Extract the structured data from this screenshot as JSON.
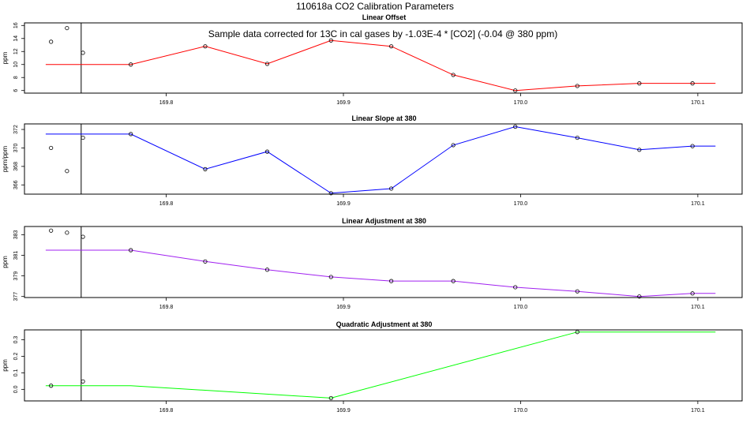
{
  "page_title": "110618a   CO2 Calibration Parameters",
  "annotation": "Sample data corrected for 13C in cal gases by -1.03E-4 * [CO2] (-0.04 @ 380 ppm)",
  "chart_data": [
    {
      "type": "line",
      "title": "Linear Offset",
      "ylabel": "ppm",
      "line_color": "#ff0000",
      "xlim": [
        169.72,
        170.125
      ],
      "ylim": [
        5.6,
        16.4
      ],
      "xticks": [
        169.8,
        169.9,
        170.0,
        170.1
      ],
      "xtick_labels": [
        "169.8",
        "169.9",
        "170.0",
        "170.1"
      ],
      "yticks": [
        6,
        8,
        10,
        12,
        14,
        16
      ],
      "ytick_labels": [
        "6",
        "8",
        "10",
        "12",
        "14",
        "16"
      ],
      "vline_x": 169.752,
      "line": {
        "x": [
          169.732,
          169.78,
          169.822,
          169.857,
          169.893,
          169.927,
          169.962,
          169.997,
          170.032,
          170.067,
          170.097,
          170.11
        ],
        "y": [
          10.0,
          10.0,
          12.8,
          10.1,
          13.7,
          12.8,
          8.4,
          6.0,
          6.7,
          7.1,
          7.1,
          7.1
        ]
      },
      "points": {
        "x": [
          169.735,
          169.744,
          169.753,
          169.78,
          169.822,
          169.857,
          169.893,
          169.927,
          169.962,
          169.997,
          170.032,
          170.067,
          170.097
        ],
        "y": [
          13.5,
          15.6,
          11.8,
          10.0,
          12.8,
          10.1,
          13.7,
          12.8,
          8.4,
          6.0,
          6.7,
          7.1,
          7.1
        ]
      }
    },
    {
      "type": "line",
      "title": "Linear Slope at 380",
      "ylabel": "ppm/ppm",
      "line_color": "#0000ff",
      "xlim": [
        169.72,
        170.125
      ],
      "ylim": [
        365.0,
        372.6
      ],
      "xticks": [
        169.8,
        169.9,
        170.0,
        170.1
      ],
      "xtick_labels": [
        "169.8",
        "169.9",
        "170.0",
        "170.1"
      ],
      "yticks": [
        366,
        368,
        370,
        372
      ],
      "ytick_labels": [
        "366",
        "368",
        "370",
        "372"
      ],
      "vline_x": 169.752,
      "line": {
        "x": [
          169.732,
          169.78,
          169.822,
          169.857,
          169.893,
          169.927,
          169.962,
          169.997,
          170.032,
          170.067,
          170.097,
          170.11
        ],
        "y": [
          371.5,
          371.5,
          367.7,
          369.6,
          365.1,
          365.6,
          370.3,
          372.3,
          371.1,
          369.8,
          370.2,
          370.2
        ]
      },
      "points": {
        "x": [
          169.735,
          169.744,
          169.753,
          169.78,
          169.822,
          169.857,
          169.893,
          169.927,
          169.962,
          169.997,
          170.032,
          170.067,
          170.097
        ],
        "y": [
          370.0,
          367.5,
          371.1,
          371.5,
          367.7,
          369.6,
          365.1,
          365.6,
          370.3,
          372.3,
          371.1,
          369.8,
          370.2
        ]
      }
    },
    {
      "type": "line",
      "title": "Linear Adjustment at 380",
      "ylabel": "ppm",
      "line_color": "#a020f0",
      "xlim": [
        169.72,
        170.125
      ],
      "ylim": [
        376.9,
        383.8
      ],
      "xticks": [
        169.8,
        169.9,
        170.0,
        170.1
      ],
      "xtick_labels": [
        "169.8",
        "169.9",
        "170.0",
        "170.1"
      ],
      "yticks": [
        377,
        379,
        381,
        383
      ],
      "ytick_labels": [
        "377",
        "379",
        "381",
        "383"
      ],
      "vline_x": 169.752,
      "line": {
        "x": [
          169.732,
          169.78,
          169.822,
          169.857,
          169.893,
          169.927,
          169.962,
          169.997,
          170.032,
          170.067,
          170.097,
          170.11
        ],
        "y": [
          381.5,
          381.5,
          380.4,
          379.6,
          378.9,
          378.5,
          378.5,
          377.9,
          377.5,
          377.0,
          377.3,
          377.3
        ]
      },
      "points": {
        "x": [
          169.735,
          169.744,
          169.753,
          169.78,
          169.822,
          169.857,
          169.893,
          169.927,
          169.962,
          169.997,
          170.032,
          170.067,
          170.097
        ],
        "y": [
          383.4,
          383.2,
          382.8,
          381.5,
          380.4,
          379.6,
          378.9,
          378.5,
          378.5,
          377.9,
          377.5,
          377.0,
          377.3
        ]
      }
    },
    {
      "type": "line",
      "title": "Quadratic Adjustment at 380",
      "ylabel": "ppm",
      "line_color": "#00ff00",
      "xlim": [
        169.72,
        170.125
      ],
      "ylim": [
        -0.07,
        0.36
      ],
      "xticks": [
        169.8,
        169.9,
        170.0,
        170.1
      ],
      "xtick_labels": [
        "169.8",
        "169.9",
        "170.0",
        "170.1"
      ],
      "yticks": [
        0.0,
        0.1,
        0.2,
        0.3
      ],
      "ytick_labels": [
        "0.0",
        "0.1",
        "0.2",
        "0.3"
      ],
      "vline_x": 169.752,
      "line": {
        "x": [
          169.732,
          169.78,
          169.893,
          170.032,
          170.11
        ],
        "y": [
          0.022,
          0.022,
          -0.053,
          0.347,
          0.347
        ]
      },
      "points": {
        "x": [
          169.735,
          169.753,
          169.893,
          170.032
        ],
        "y": [
          0.022,
          0.048,
          -0.053,
          0.347
        ]
      }
    }
  ]
}
